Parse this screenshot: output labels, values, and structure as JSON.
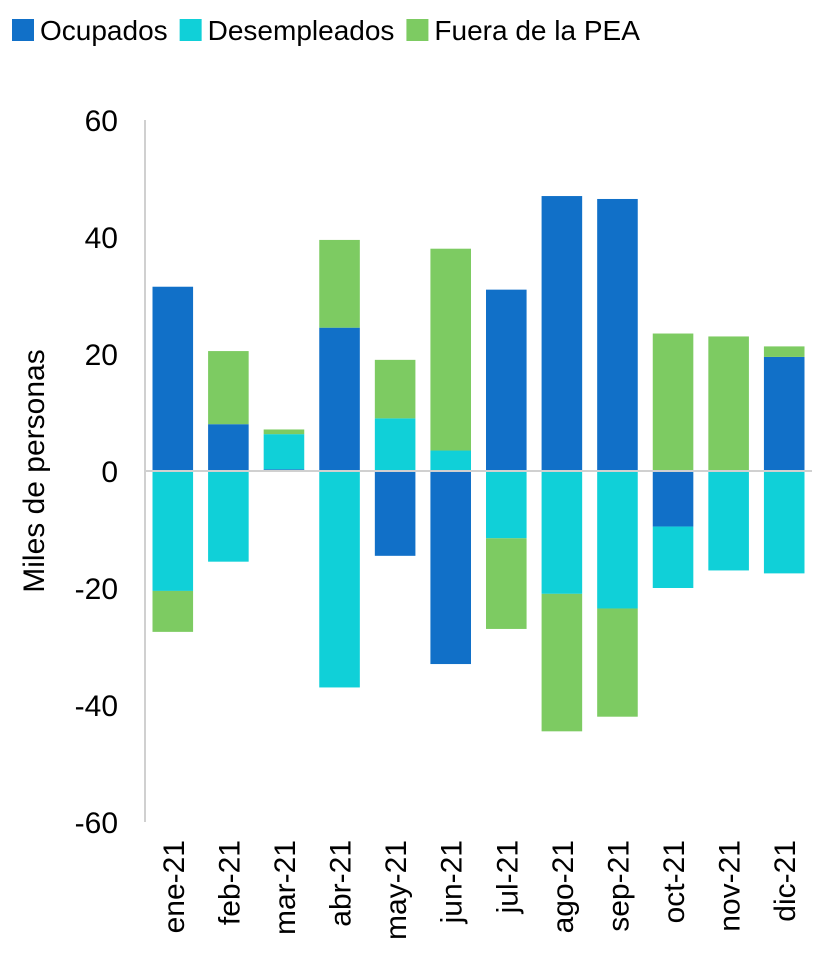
{
  "chart_data": {
    "type": "bar",
    "stacked": true,
    "categories": [
      "ene-21",
      "feb-21",
      "mar-21",
      "abr-21",
      "may-21",
      "jun-21",
      "jul-21",
      "ago-21",
      "sep-21",
      "oct-21",
      "nov-21",
      "dic-21"
    ],
    "series": [
      {
        "name": "Ocupados",
        "color": "#1170C8",
        "values": [
          31.5,
          8.0,
          0.3,
          24.5,
          -14.5,
          -33.0,
          31.0,
          47.0,
          46.5,
          -9.5,
          0.0,
          19.5
        ]
      },
      {
        "name": "Desempleados",
        "color": "#10D0D8",
        "values": [
          -20.5,
          -15.5,
          6.0,
          -37.0,
          9.0,
          3.5,
          -11.5,
          -21.0,
          -23.5,
          -10.5,
          -17.0,
          -17.5
        ]
      },
      {
        "name": "Fuera de la PEA",
        "color": "#7DCB62",
        "values": [
          -7.0,
          12.5,
          0.8,
          15.0,
          10.0,
          34.5,
          -15.5,
          -23.5,
          -18.5,
          23.5,
          23.0,
          1.8
        ]
      }
    ],
    "title": "",
    "xlabel": "",
    "ylabel": "Miles de personas",
    "ylim": [
      -60,
      60
    ],
    "yticks": [
      -60,
      -40,
      -20,
      0,
      20,
      40,
      60
    ],
    "ytick_labels": [
      "-60",
      "-40",
      "-20",
      "0",
      "20",
      "40",
      "60"
    ],
    "grid": false,
    "legend_position": "top"
  }
}
